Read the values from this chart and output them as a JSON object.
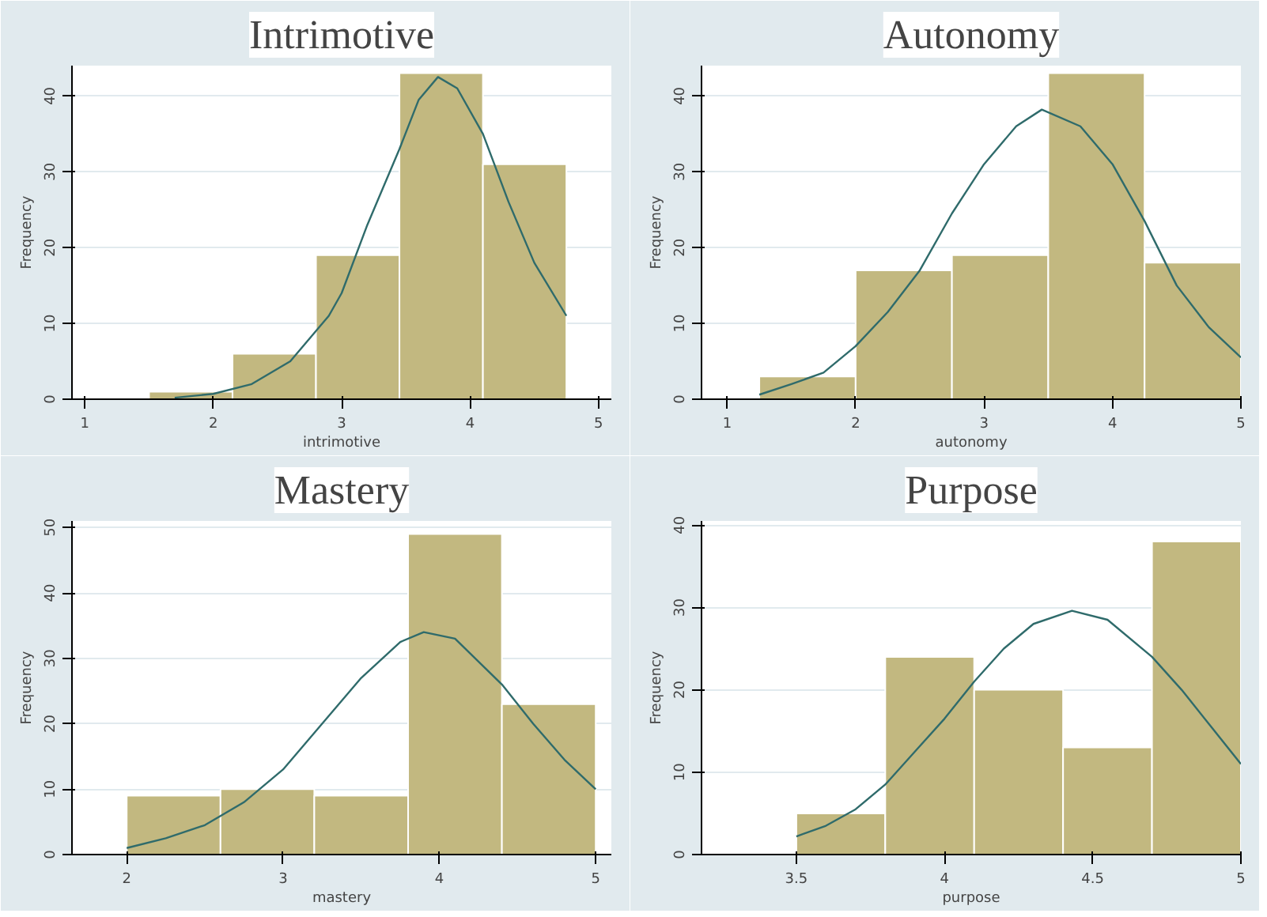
{
  "chart_data": [
    {
      "type": "histogram",
      "title": "Intrimotive",
      "xlabel": "intrimotive",
      "ylabel": "Frequency",
      "bins": [
        1.5,
        2.15,
        2.8,
        3.45,
        4.1,
        4.75
      ],
      "values": [
        1,
        6,
        19,
        43,
        31
      ],
      "color": "#c2b880",
      "xlim": [
        0.9,
        5.1
      ],
      "xticks": [
        1,
        2,
        3,
        4,
        5
      ],
      "ylim": [
        0,
        44
      ],
      "yticks": [
        0,
        10,
        20,
        30,
        40
      ],
      "grid": "y",
      "series": [
        {
          "type": "line",
          "color": "#2f6b6b",
          "x": [
            1.7,
            2.0,
            2.3,
            2.6,
            2.9,
            3.0,
            3.2,
            3.45,
            3.6,
            3.75,
            3.9,
            4.1,
            4.3,
            4.5,
            4.75
          ],
          "values": [
            0.2,
            0.7,
            2,
            5,
            11,
            14,
            23,
            33,
            39.5,
            42.5,
            41,
            35,
            26,
            18,
            11
          ]
        }
      ]
    },
    {
      "type": "histogram",
      "title": "Autonomy",
      "xlabel": "autonomy",
      "ylabel": "Frequency",
      "bins": [
        1.25,
        2,
        2.75,
        3.5,
        4.25,
        5
      ],
      "values": [
        3,
        17,
        19,
        43,
        18
      ],
      "color": "#c2b880",
      "xlim": [
        0.8,
        5.0
      ],
      "xticks": [
        1,
        2,
        3,
        4,
        5
      ],
      "ylim": [
        0,
        44
      ],
      "yticks": [
        0,
        10,
        20,
        30,
        40
      ],
      "grid": "y",
      "series": [
        {
          "type": "line",
          "color": "#2f6b6b",
          "x": [
            1.25,
            1.5,
            1.75,
            2,
            2.25,
            2.5,
            2.75,
            3,
            3.25,
            3.45,
            3.75,
            4,
            4.25,
            4.5,
            4.75,
            5
          ],
          "values": [
            0.6,
            2,
            3.5,
            7,
            11.5,
            17,
            24.5,
            31,
            36,
            38.2,
            36,
            31,
            23.5,
            15,
            9.5,
            5.5
          ]
        }
      ]
    },
    {
      "type": "histogram",
      "title": "Mastery",
      "xlabel": "mastery",
      "ylabel": "Frequency",
      "bins": [
        2,
        2.6,
        3.2,
        3.8,
        4.4,
        5
      ],
      "values": [
        9,
        10,
        9,
        49,
        23
      ],
      "color": "#c2b880",
      "xlim": [
        1.65,
        5.1
      ],
      "xticks": [
        2,
        3,
        4,
        5
      ],
      "ylim": [
        0,
        51
      ],
      "yticks": [
        0,
        10,
        20,
        30,
        40,
        50
      ],
      "grid": "y",
      "series": [
        {
          "type": "line",
          "color": "#2f6b6b",
          "x": [
            2,
            2.25,
            2.5,
            2.75,
            3,
            3.25,
            3.5,
            3.75,
            3.9,
            4.1,
            4.4,
            4.6,
            4.8,
            5
          ],
          "values": [
            1,
            2.5,
            4.5,
            8,
            13,
            20,
            27,
            32.5,
            34,
            33,
            26,
            20,
            14.5,
            10
          ]
        }
      ]
    },
    {
      "type": "histogram",
      "title": "Purpose",
      "xlabel": "purpose",
      "ylabel": "Frequency",
      "bins": [
        3.5,
        3.8,
        4.1,
        4.4,
        4.7,
        5
      ],
      "values": [
        5,
        24,
        20,
        13,
        38
      ],
      "color": "#c2b880",
      "xlim": [
        3.18,
        5.0
      ],
      "xticks": [
        3.5,
        4,
        4.5,
        5
      ],
      "ylim": [
        0,
        40.5
      ],
      "yticks": [
        0,
        10,
        20,
        30,
        40
      ],
      "grid": "y",
      "series": [
        {
          "type": "line",
          "color": "#2f6b6b",
          "x": [
            3.5,
            3.6,
            3.7,
            3.8,
            3.9,
            4.0,
            4.1,
            4.2,
            4.3,
            4.43,
            4.55,
            4.7,
            4.8,
            4.9,
            5.0
          ],
          "values": [
            2.2,
            3.5,
            5.5,
            8.5,
            12.5,
            16.5,
            21,
            25,
            28,
            29.6,
            28.5,
            24,
            20,
            15.5,
            11
          ]
        }
      ]
    }
  ]
}
